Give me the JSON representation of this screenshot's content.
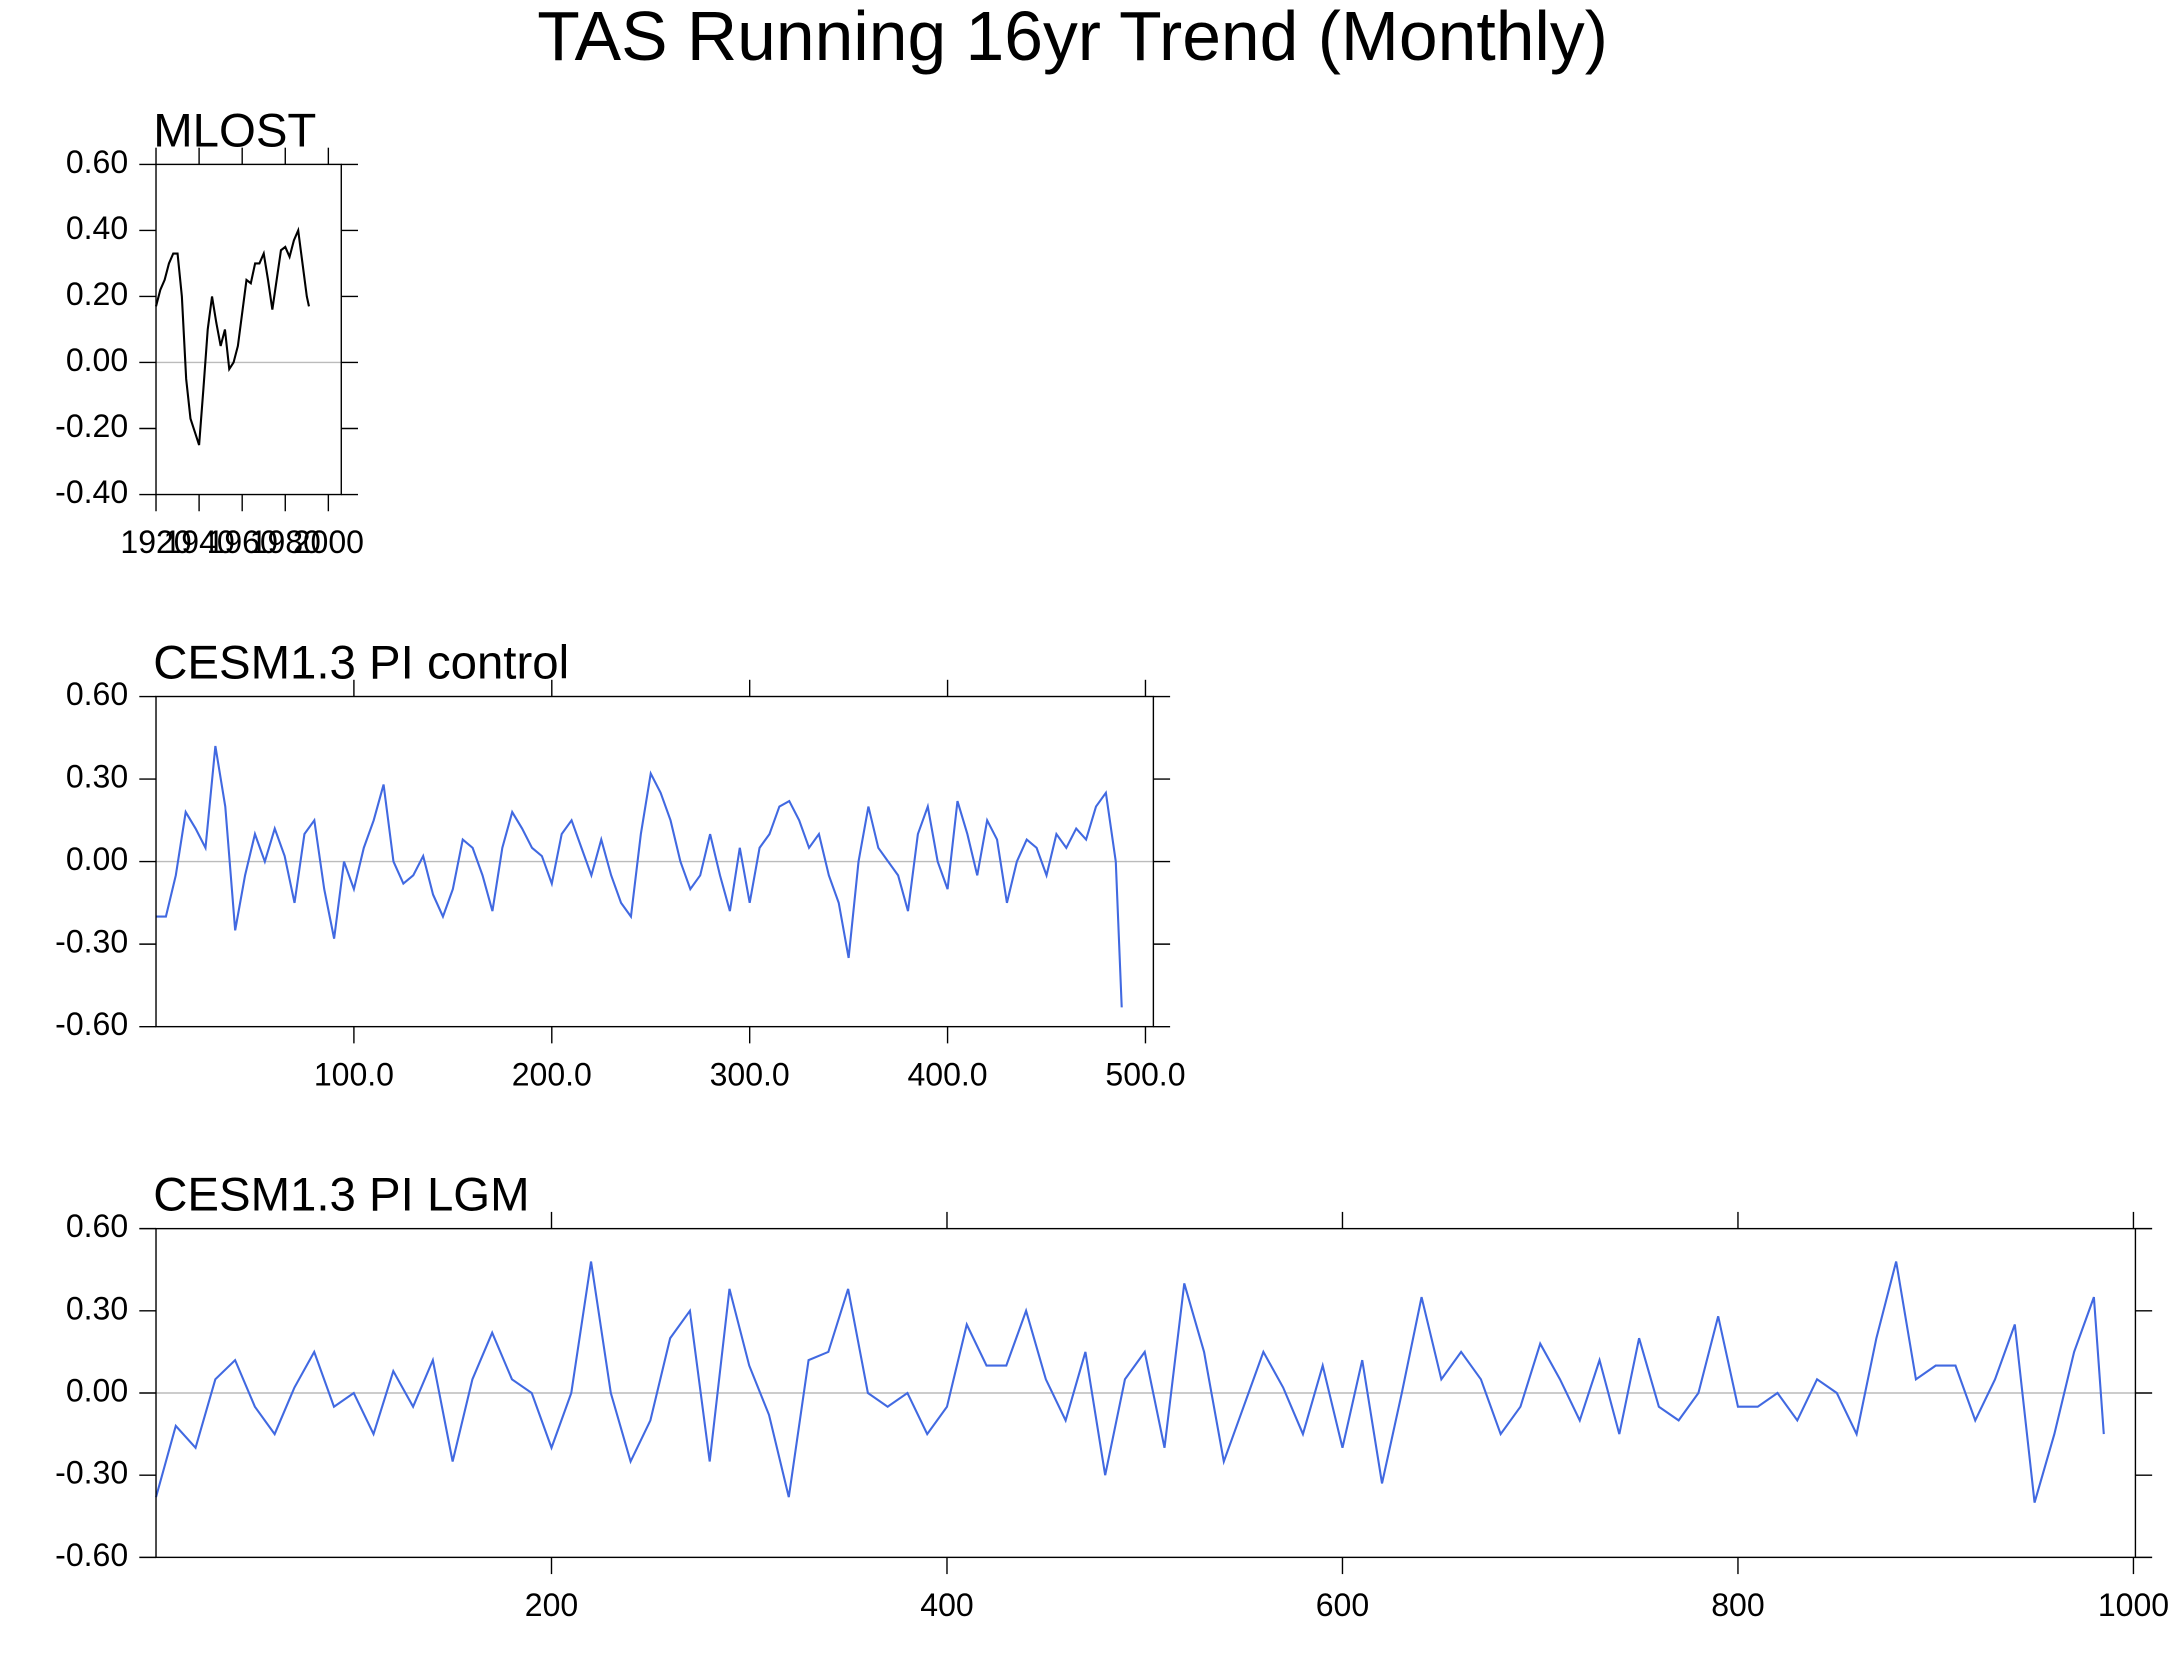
{
  "title": "TAS Running 16yr Trend (Monthly)",
  "chart_data": [
    {
      "type": "line",
      "title": "MLOST",
      "color": "#000000",
      "x": [
        1920,
        1922,
        1924,
        1926,
        1928,
        1930,
        1932,
        1934,
        1936,
        1938,
        1940,
        1942,
        1944,
        1946,
        1948,
        1950,
        1952,
        1954,
        1956,
        1958,
        1960,
        1962,
        1964,
        1966,
        1968,
        1970,
        1972,
        1974,
        1976,
        1978,
        1980,
        1982,
        1984,
        1986,
        1988,
        1990,
        1991
      ],
      "values": [
        0.17,
        0.22,
        0.25,
        0.3,
        0.33,
        0.33,
        0.2,
        -0.05,
        -0.17,
        -0.21,
        -0.25,
        -0.08,
        0.1,
        0.2,
        0.12,
        0.05,
        0.1,
        -0.02,
        0.0,
        0.05,
        0.15,
        0.25,
        0.24,
        0.3,
        0.3,
        0.33,
        0.25,
        0.16,
        0.25,
        0.34,
        0.35,
        0.32,
        0.37,
        0.4,
        0.3,
        0.2,
        0.17
      ],
      "xlim": [
        1920,
        2006
      ],
      "xticks": [
        1920,
        1940,
        1960,
        1980,
        2000
      ],
      "ylim": [
        -0.4,
        0.6
      ],
      "yticks": [
        {
          "value": -0.4,
          "label": "-0.40"
        },
        {
          "value": -0.2,
          "label": "-0.20"
        },
        {
          "value": 0,
          "label": "0.00"
        },
        {
          "value": 0.2,
          "label": "0.20"
        },
        {
          "value": 0.4,
          "label": "0.40"
        },
        {
          "value": 0.6,
          "label": "0.60"
        }
      ]
    },
    {
      "type": "line",
      "title": "CESM1.3 PI control",
      "color": "#4169e1",
      "x": [
        0,
        5,
        10,
        15,
        20,
        25,
        30,
        35,
        40,
        45,
        50,
        55,
        60,
        65,
        70,
        75,
        80,
        85,
        90,
        95,
        100,
        105,
        110,
        115,
        120,
        125,
        130,
        135,
        140,
        145,
        150,
        155,
        160,
        165,
        170,
        175,
        180,
        185,
        190,
        195,
        200,
        205,
        210,
        215,
        220,
        225,
        230,
        235,
        240,
        245,
        250,
        255,
        260,
        265,
        270,
        275,
        280,
        285,
        290,
        295,
        300,
        305,
        310,
        315,
        320,
        325,
        330,
        335,
        340,
        345,
        350,
        355,
        360,
        365,
        370,
        375,
        380,
        385,
        390,
        395,
        400,
        405,
        410,
        415,
        420,
        425,
        430,
        435,
        440,
        445,
        450,
        455,
        460,
        465,
        470,
        475,
        480,
        485,
        488
      ],
      "values": [
        -0.2,
        -0.2,
        -0.05,
        0.18,
        0.12,
        0.05,
        0.42,
        0.2,
        -0.25,
        -0.05,
        0.1,
        0.0,
        0.12,
        0.02,
        -0.15,
        0.1,
        0.15,
        -0.1,
        -0.28,
        0.0,
        -0.1,
        0.05,
        0.15,
        0.28,
        0.0,
        -0.08,
        -0.05,
        0.02,
        -0.12,
        -0.2,
        -0.1,
        0.08,
        0.05,
        -0.05,
        -0.18,
        0.05,
        0.18,
        0.12,
        0.05,
        0.02,
        -0.08,
        0.1,
        0.15,
        0.05,
        -0.05,
        0.08,
        -0.05,
        -0.15,
        -0.2,
        0.1,
        0.32,
        0.25,
        0.15,
        0.0,
        -0.1,
        -0.05,
        0.1,
        -0.05,
        -0.18,
        0.05,
        -0.15,
        0.05,
        0.1,
        0.2,
        0.22,
        0.15,
        0.05,
        0.1,
        -0.05,
        -0.15,
        -0.35,
        0.0,
        0.2,
        0.05,
        0.0,
        -0.05,
        -0.18,
        0.1,
        0.2,
        0.0,
        -0.1,
        0.22,
        0.1,
        -0.05,
        0.15,
        0.08,
        -0.15,
        0.0,
        0.08,
        0.05,
        -0.05,
        0.1,
        0.05,
        0.12,
        0.08,
        0.2,
        0.25,
        0.0,
        -0.53
      ],
      "xlim": [
        0,
        504
      ],
      "xticks": [
        {
          "value": 100,
          "label": "100.0"
        },
        {
          "value": 200,
          "label": "200.0"
        },
        {
          "value": 300,
          "label": "300.0"
        },
        {
          "value": 400,
          "label": "400.0"
        },
        {
          "value": 500,
          "label": "500.0"
        }
      ],
      "ylim": [
        -0.6,
        0.6
      ],
      "yticks": [
        {
          "value": -0.6,
          "label": "-0.60"
        },
        {
          "value": -0.3,
          "label": "-0.30"
        },
        {
          "value": 0,
          "label": "0.00"
        },
        {
          "value": 0.3,
          "label": "0.30"
        },
        {
          "value": 0.6,
          "label": "0.60"
        }
      ]
    },
    {
      "type": "line",
      "title": "CESM1.3 PI LGM",
      "color": "#4169e1",
      "x": [
        0,
        10,
        20,
        30,
        40,
        50,
        60,
        70,
        80,
        90,
        100,
        110,
        120,
        130,
        140,
        150,
        160,
        170,
        180,
        190,
        200,
        210,
        220,
        230,
        240,
        250,
        260,
        270,
        280,
        290,
        300,
        310,
        320,
        330,
        340,
        350,
        360,
        370,
        380,
        390,
        400,
        410,
        420,
        430,
        440,
        450,
        460,
        470,
        480,
        490,
        500,
        510,
        520,
        530,
        540,
        550,
        560,
        570,
        580,
        590,
        600,
        610,
        620,
        630,
        640,
        650,
        660,
        670,
        680,
        690,
        700,
        710,
        720,
        730,
        740,
        750,
        760,
        770,
        780,
        790,
        800,
        810,
        820,
        830,
        840,
        850,
        860,
        870,
        880,
        890,
        900,
        910,
        920,
        930,
        940,
        950,
        960,
        970,
        980,
        985
      ],
      "values": [
        -0.38,
        -0.12,
        -0.2,
        0.05,
        0.12,
        -0.05,
        -0.15,
        0.02,
        0.15,
        -0.05,
        0.0,
        -0.15,
        0.08,
        -0.05,
        0.12,
        -0.25,
        0.05,
        0.22,
        0.05,
        0.0,
        -0.2,
        0.0,
        0.48,
        0.0,
        -0.25,
        -0.1,
        0.2,
        0.3,
        -0.25,
        0.38,
        0.1,
        -0.08,
        -0.38,
        0.12,
        0.15,
        0.38,
        0.0,
        -0.05,
        0.0,
        -0.15,
        -0.05,
        0.25,
        0.1,
        0.1,
        0.3,
        0.05,
        -0.1,
        0.15,
        -0.3,
        0.05,
        0.15,
        -0.2,
        0.4,
        0.15,
        -0.25,
        -0.05,
        0.15,
        0.02,
        -0.15,
        0.1,
        -0.2,
        0.12,
        -0.33,
        0.0,
        0.35,
        0.05,
        0.15,
        0.05,
        -0.15,
        -0.05,
        0.18,
        0.05,
        -0.1,
        0.12,
        -0.15,
        0.2,
        -0.05,
        -0.1,
        0.0,
        0.28,
        -0.05,
        -0.05,
        0.0,
        -0.1,
        0.05,
        0.0,
        -0.15,
        0.2,
        0.48,
        0.05,
        0.1,
        0.1,
        -0.1,
        0.05,
        0.25,
        -0.4,
        -0.15,
        0.15,
        0.35,
        -0.15
      ],
      "xlim": [
        0,
        1001
      ],
      "xticks": [
        200,
        400,
        600,
        800,
        1000
      ],
      "ylim": [
        -0.6,
        0.6
      ],
      "yticks": [
        {
          "value": -0.6,
          "label": "-0.60"
        },
        {
          "value": -0.3,
          "label": "-0.30"
        },
        {
          "value": 0,
          "label": "0.00"
        },
        {
          "value": 0.3,
          "label": "0.30"
        },
        {
          "value": 0.6,
          "label": "0.60"
        }
      ]
    }
  ]
}
